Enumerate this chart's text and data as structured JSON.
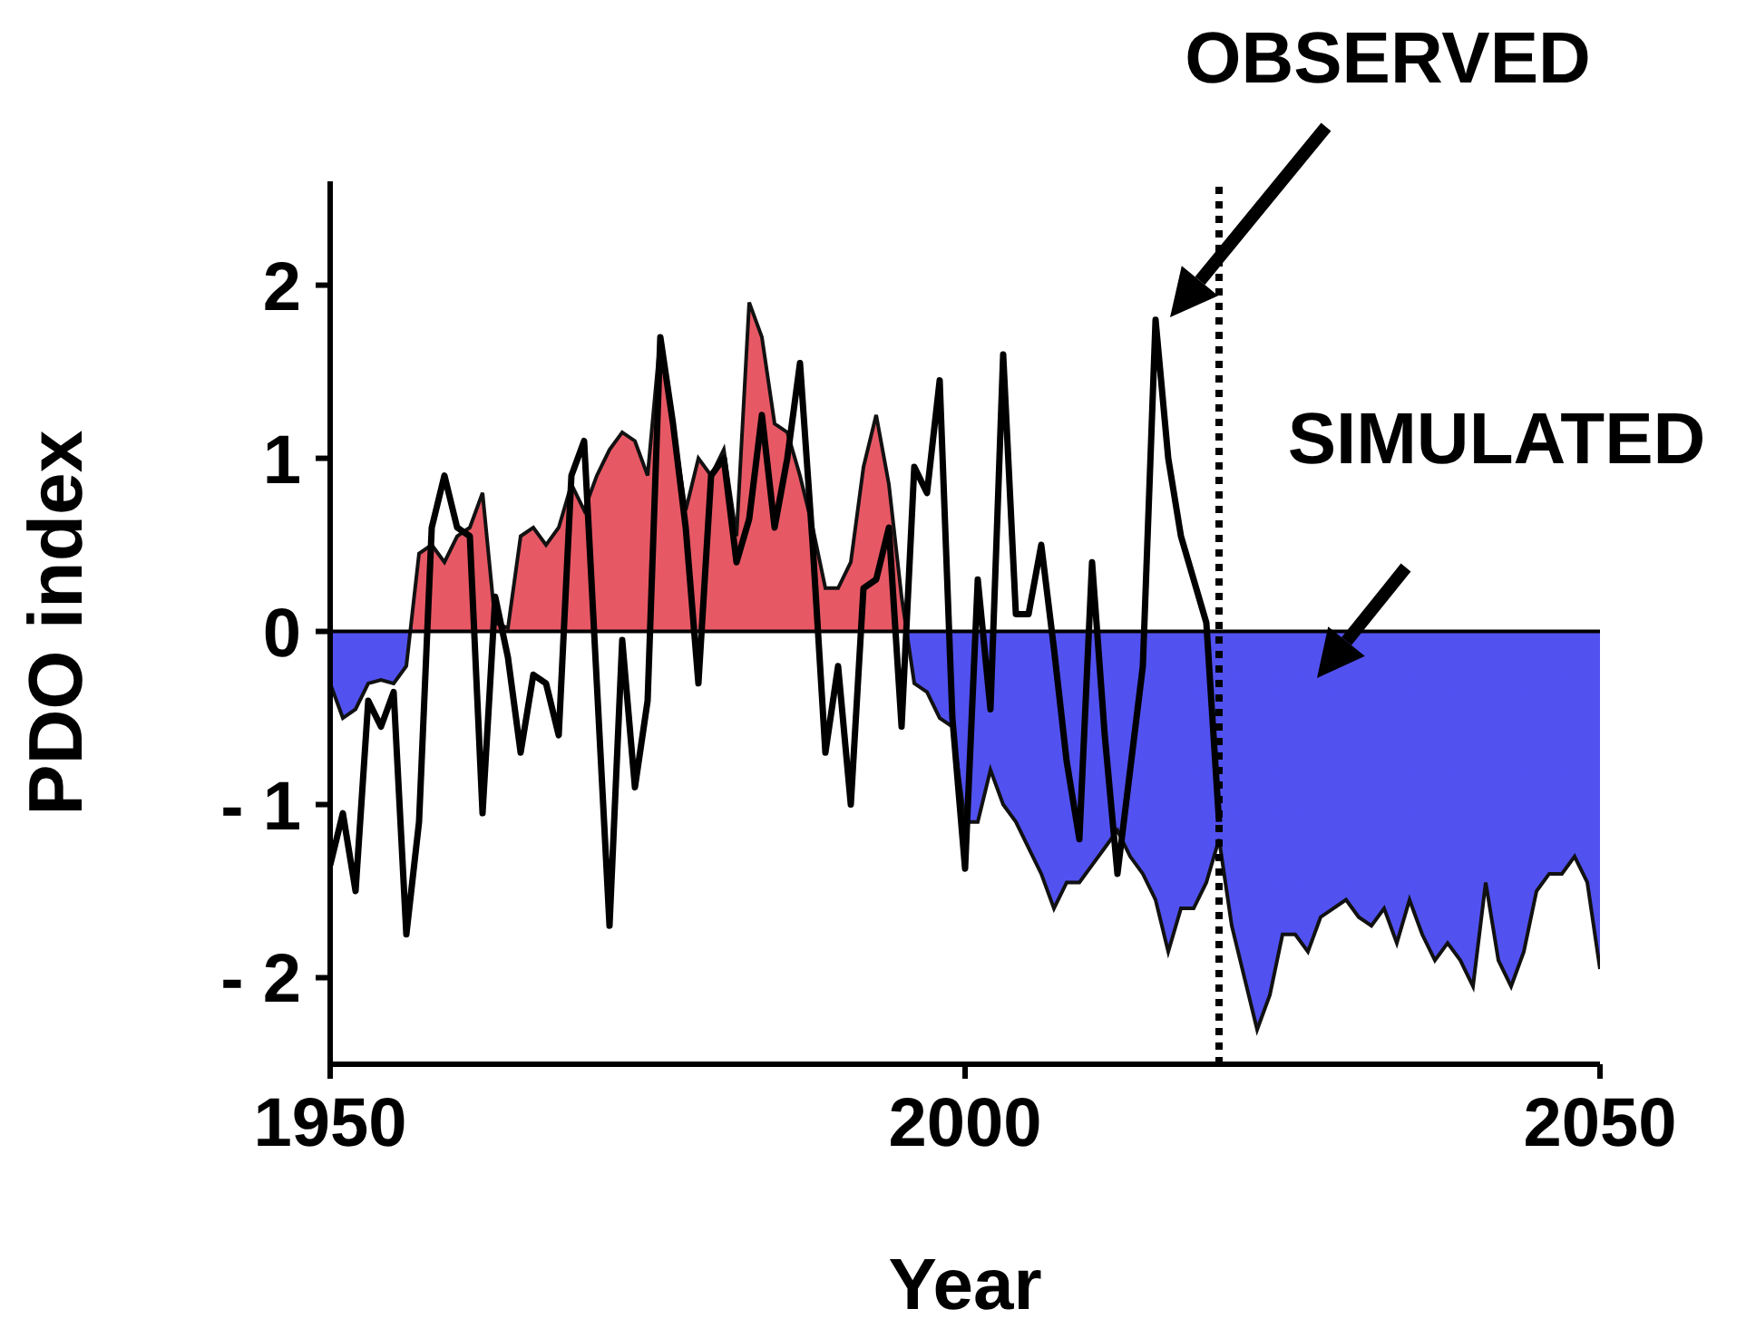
{
  "chart_data": {
    "type": "area",
    "xlabel": "Year",
    "ylabel": "PDO index",
    "x": [
      1950,
      1951,
      1952,
      1953,
      1954,
      1955,
      1956,
      1957,
      1958,
      1959,
      1960,
      1961,
      1962,
      1963,
      1964,
      1965,
      1966,
      1967,
      1968,
      1969,
      1970,
      1971,
      1972,
      1973,
      1974,
      1975,
      1976,
      1977,
      1978,
      1979,
      1980,
      1981,
      1982,
      1983,
      1984,
      1985,
      1986,
      1987,
      1988,
      1989,
      1990,
      1991,
      1992,
      1993,
      1994,
      1995,
      1996,
      1997,
      1998,
      1999,
      2000,
      2001,
      2002,
      2003,
      2004,
      2005,
      2006,
      2007,
      2008,
      2009,
      2010,
      2011,
      2012,
      2013,
      2014,
      2015,
      2016,
      2017,
      2018,
      2019,
      2020,
      2021,
      2022,
      2023,
      2024,
      2025,
      2026,
      2027,
      2028,
      2029,
      2030,
      2031,
      2032,
      2033,
      2034,
      2035,
      2036,
      2037,
      2038,
      2039,
      2040,
      2041,
      2042,
      2043,
      2044,
      2045,
      2046,
      2047,
      2048,
      2049,
      2050
    ],
    "series": [
      {
        "colors": [
          "#3333ee",
          "#3333ee",
          "#3333ee",
          "#3333ee",
          "#3333ee",
          "#3333ee",
          "#3333ee",
          "#e33b4a",
          "#e33b4a",
          "#e33b4a",
          "#e33b4a",
          "#e33b4a",
          "#e33b4a",
          "#e33b4a",
          "#e33b4a",
          "#e33b4a",
          "#e33b4a",
          "#e33b4a",
          "#e33b4a",
          "#e33b4a",
          "#e33b4a",
          "#e33b4a",
          "#e33b4a",
          "#e33b4a",
          "#e33b4a",
          "#e33b4a",
          "#e33b4a",
          "#e33b4a",
          "#e33b4a",
          "#e33b4a",
          "#e33b4a",
          "#e33b4a",
          "#e33b4a",
          "#e33b4a",
          "#e33b4a",
          "#e33b4a",
          "#e33b4a",
          "#e33b4a",
          "#e33b4a",
          "#e33b4a",
          "#e33b4a",
          "#e33b4a",
          "#e33b4a",
          "#e33b4a",
          "#e33b4a",
          "#e33b4a",
          "#3333ee",
          "#3333ee",
          "#3333ee",
          "#3333ee",
          "#3333ee",
          "#3333ee",
          "#3333ee",
          "#3333ee",
          "#3333ee",
          "#3333ee",
          "#3333ee",
          "#3333ee",
          "#3333ee",
          "#3333ee",
          "#3333ee",
          "#3333ee",
          "#3333ee",
          "#3333ee",
          "#3333ee",
          "#3333ee",
          "#3333ee",
          "#3333ee",
          "#3333ee",
          "#3333ee",
          "#3333ee",
          "#3333ee",
          "#3333ee",
          "#3333ee",
          "#3333ee",
          "#3333ee",
          "#3333ee",
          "#3333ee",
          "#3333ee",
          "#3333ee",
          "#3333ee",
          "#3333ee",
          "#3333ee",
          "#3333ee",
          "#3333ee",
          "#3333ee",
          "#3333ee",
          "#3333ee",
          "#3333ee",
          "#3333ee",
          "#3333ee",
          "#3333ee",
          "#3333ee",
          "#3333ee",
          "#3333ee",
          "#3333ee",
          "#3333ee",
          "#3333ee",
          "#3333ee",
          "#3333ee",
          "#3333ee"
        ],
        "values": [
          -0.3,
          -0.5,
          -0.45,
          -0.3,
          -0.28,
          -0.3,
          -0.2,
          0.45,
          0.5,
          0.4,
          0.55,
          0.6,
          0.8,
          0.05,
          0.02,
          0.55,
          0.6,
          0.5,
          0.6,
          0.85,
          0.7,
          0.9,
          1.05,
          1.15,
          1.1,
          0.9,
          1.7,
          1.2,
          0.7,
          1.0,
          0.9,
          1.05,
          0.55,
          1.9,
          1.7,
          1.2,
          1.15,
          0.9,
          0.6,
          0.25,
          0.25,
          0.4,
          0.95,
          1.25,
          0.85,
          0.2,
          -0.3,
          -0.35,
          -0.5,
          -0.55,
          -1.1,
          -1.1,
          -0.8,
          -1.0,
          -1.1,
          -1.25,
          -1.4,
          -1.6,
          -1.45,
          -1.45,
          -1.35,
          -1.25,
          -1.15,
          -1.3,
          -1.4,
          -1.55,
          -1.85,
          -1.6,
          -1.6,
          -1.45,
          -1.2,
          -1.7,
          -2.0,
          -2.3,
          -2.1,
          -1.75,
          -1.75,
          -1.85,
          -1.65,
          -1.6,
          -1.55,
          -1.65,
          -1.7,
          -1.6,
          -1.8,
          -1.55,
          -1.75,
          -1.9,
          -1.8,
          -1.9,
          -2.05,
          -1.45,
          -1.9,
          -2.05,
          -1.85,
          -1.5,
          -1.4,
          -1.4,
          -1.3,
          -1.45,
          -1.95
        ]
      },
      {
        "type": "line",
        "color": "#000000",
        "x": [
          1950,
          1951,
          1952,
          1953,
          1954,
          1955,
          1956,
          1957,
          1958,
          1959,
          1960,
          1961,
          1962,
          1963,
          1964,
          1965,
          1966,
          1967,
          1968,
          1969,
          1970,
          1971,
          1972,
          1973,
          1974,
          1975,
          1976,
          1977,
          1978,
          1979,
          1980,
          1981,
          1982,
          1983,
          1984,
          1985,
          1986,
          1987,
          1988,
          1989,
          1990,
          1991,
          1992,
          1993,
          1994,
          1995,
          1996,
          1997,
          1998,
          1999,
          2000,
          2001,
          2002,
          2003,
          2004,
          2005,
          2006,
          2007,
          2008,
          2009,
          2010,
          2011,
          2012,
          2013,
          2014,
          2015,
          2016,
          2017,
          2018,
          2019,
          2020
        ],
        "values": [
          -1.35,
          -1.05,
          -1.5,
          -0.4,
          -0.55,
          -0.35,
          -1.75,
          -1.1,
          0.6,
          0.9,
          0.6,
          0.55,
          -1.05,
          0.2,
          -0.15,
          -0.7,
          -0.25,
          -0.3,
          -0.6,
          0.9,
          1.1,
          -0.3,
          -1.7,
          -0.05,
          -0.9,
          -0.4,
          1.7,
          1.2,
          0.6,
          -0.3,
          0.9,
          1.0,
          0.4,
          0.65,
          1.25,
          0.6,
          1.0,
          1.55,
          0.5,
          -0.7,
          -0.2,
          -1.0,
          0.25,
          0.3,
          0.6,
          -0.55,
          0.95,
          0.8,
          1.45,
          -0.5,
          -1.37,
          0.3,
          -0.45,
          1.6,
          0.1,
          0.1,
          0.5,
          -0.1,
          -0.75,
          -1.2,
          0.4,
          -0.6,
          -1.4,
          -0.8,
          -0.2,
          1.8,
          1.0,
          0.55,
          0.3,
          0.05,
          -1.1
        ]
      }
    ],
    "xlim": [
      1950,
      2050
    ],
    "xticks": [
      1950,
      2000,
      2050
    ],
    "ylim": [
      -2.5,
      2.6
    ],
    "yticks": [
      {
        "value": -2,
        "label": "- 2"
      },
      {
        "value": -1,
        "label": "- 1"
      },
      0,
      1,
      2
    ],
    "ref_lines": [
      {
        "axis": "x",
        "value": 2020,
        "line_style": "dotted",
        "color": "#000000"
      },
      {
        "axis": "y",
        "value": 0,
        "line_style": "solid",
        "color": "#000000"
      }
    ],
    "annotations": [
      "OBSERVED",
      "SIMULATED"
    ],
    "grid": false,
    "legend": false
  }
}
